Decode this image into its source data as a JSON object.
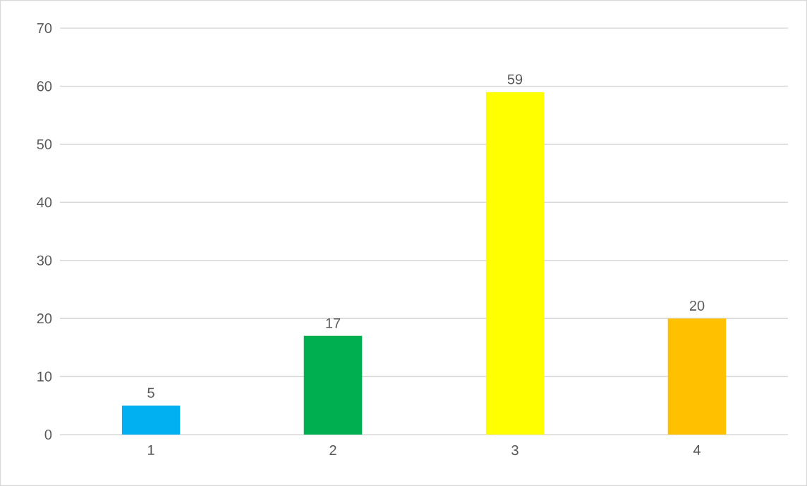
{
  "chart_data": {
    "type": "bar",
    "categories": [
      "1",
      "2",
      "3",
      "4"
    ],
    "values": [
      5,
      17,
      59,
      20
    ],
    "colors": [
      "#00b0f0",
      "#00b050",
      "#ffff00",
      "#ffc000"
    ],
    "ylim": [
      0,
      70
    ],
    "yticks": [
      0,
      10,
      20,
      30,
      40,
      50,
      60,
      70
    ],
    "grid": "y",
    "data_labels": true
  }
}
